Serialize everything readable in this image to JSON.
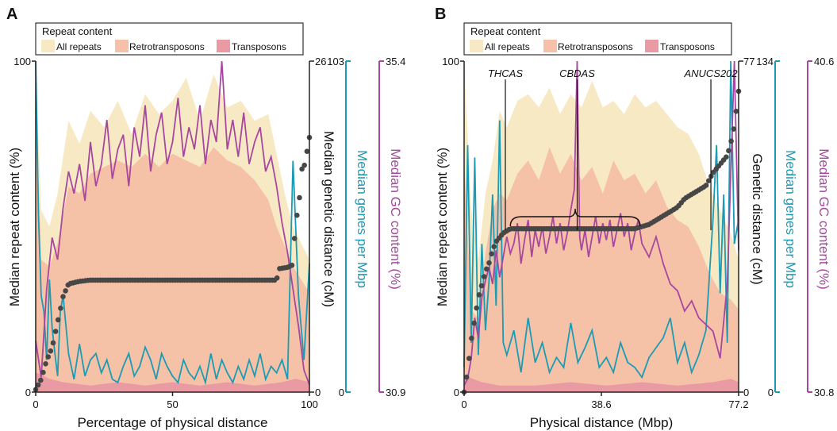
{
  "colors": {
    "all_repeats": "#f7e9c4",
    "retrotransposons": "#f5c2a7",
    "transposons": "#ea9aa2",
    "genetic": "#474747",
    "genes": "#1b9bb4",
    "gc": "#a7479f",
    "axis": "#222222"
  },
  "chart_data": [
    {
      "panel_label": "A",
      "type": "area",
      "legend_title": "Repeat content",
      "legend": [
        "All repeats",
        "Retrotransposons",
        "Transposons"
      ],
      "xlabel": "Percentage of physical distance",
      "xticks": [
        "0",
        "50",
        "100"
      ],
      "xlim": [
        0,
        100
      ],
      "axes": {
        "repeat": {
          "label": "Median repeat content (%)",
          "ticks": [
            "0",
            "100"
          ],
          "range": [
            0,
            100
          ]
        },
        "genetic": {
          "label": "Median genetic distance (cM)",
          "ticks": [
            "0",
            "26"
          ],
          "range": [
            0,
            26
          ]
        },
        "genes": {
          "label": "Median genes per Mbp",
          "ticks": [
            "0",
            "103"
          ],
          "range": [
            0,
            103
          ]
        },
        "gc": {
          "label": "Median GC content (%)",
          "ticks": [
            "30.9",
            "35.4"
          ],
          "range": [
            30.9,
            35.4
          ]
        }
      },
      "series": [
        {
          "name": "All repeats",
          "x": [
            0,
            2,
            5,
            8,
            12,
            16,
            20,
            25,
            30,
            35,
            40,
            45,
            50,
            55,
            60,
            65,
            70,
            75,
            80,
            85,
            88,
            91,
            94,
            97,
            100
          ],
          "values": [
            100,
            55,
            50,
            60,
            82,
            75,
            85,
            80,
            88,
            78,
            90,
            84,
            88,
            95,
            82,
            96,
            86,
            88,
            82,
            84,
            72,
            60,
            50,
            45,
            40
          ]
        },
        {
          "name": "Retrotransposons",
          "x": [
            0,
            2,
            5,
            8,
            12,
            16,
            20,
            25,
            30,
            35,
            40,
            45,
            50,
            55,
            60,
            65,
            70,
            75,
            80,
            85,
            88,
            91,
            94,
            97,
            100
          ],
          "values": [
            90,
            40,
            38,
            45,
            62,
            60,
            66,
            68,
            70,
            68,
            72,
            68,
            72,
            70,
            68,
            74,
            70,
            68,
            64,
            58,
            50,
            44,
            38,
            34,
            30
          ]
        },
        {
          "name": "Transposons",
          "x": [
            0,
            5,
            10,
            20,
            30,
            40,
            50,
            60,
            70,
            80,
            90,
            95,
            100
          ],
          "values": [
            6,
            4,
            3,
            2,
            3,
            2,
            3,
            2,
            3,
            2,
            3,
            4,
            3
          ]
        },
        {
          "name": "Median genetic distance (cM)",
          "x": [
            0,
            2,
            4,
            6,
            8,
            10,
            12,
            14,
            16,
            20,
            30,
            40,
            50,
            60,
            70,
            80,
            88,
            89,
            92,
            94,
            95,
            96,
            97,
            98,
            99,
            100
          ],
          "values": [
            0.2,
            1.0,
            2.5,
            3.5,
            5.5,
            7.5,
            8.5,
            8.6,
            8.7,
            8.8,
            8.8,
            8.8,
            8.8,
            8.8,
            8.8,
            8.8,
            8.8,
            9.7,
            9.8,
            10.0,
            13.8,
            14.0,
            17.5,
            17.6,
            18.8,
            20.0
          ]
        },
        {
          "name": "Median genes per Mbp",
          "x": [
            0,
            1,
            2,
            3,
            4,
            5,
            6,
            7,
            8,
            9,
            10,
            12,
            14,
            16,
            18,
            20,
            22,
            24,
            26,
            28,
            30,
            32,
            34,
            36,
            38,
            40,
            42,
            44,
            46,
            48,
            50,
            52,
            54,
            56,
            58,
            60,
            62,
            64,
            66,
            68,
            70,
            72,
            74,
            76,
            78,
            80,
            82,
            84,
            86,
            88,
            90,
            92,
            94,
            96,
            98,
            100
          ],
          "values": [
            103,
            55,
            30,
            25,
            10,
            35,
            20,
            12,
            5,
            25,
            30,
            12,
            4,
            15,
            5,
            10,
            12,
            6,
            10,
            4,
            3,
            8,
            12,
            5,
            8,
            14,
            10,
            4,
            12,
            8,
            5,
            3,
            10,
            6,
            4,
            8,
            3,
            12,
            4,
            10,
            6,
            3,
            8,
            4,
            10,
            5,
            12,
            4,
            8,
            6,
            10,
            4,
            72,
            30,
            10,
            40
          ]
        },
        {
          "name": "Median GC content (%)",
          "x": [
            0,
            2,
            4,
            6,
            8,
            10,
            12,
            14,
            16,
            18,
            20,
            22,
            24,
            26,
            28,
            30,
            32,
            34,
            36,
            38,
            40,
            42,
            44,
            46,
            48,
            50,
            52,
            54,
            56,
            58,
            60,
            62,
            64,
            66,
            68,
            70,
            72,
            74,
            76,
            78,
            80,
            82,
            84,
            86,
            88,
            90,
            92,
            94,
            96,
            98,
            100
          ],
          "values": [
            31.6,
            31.1,
            32.3,
            33.0,
            32.7,
            33.4,
            33.9,
            33.6,
            34.0,
            33.5,
            34.3,
            33.7,
            34.0,
            34.6,
            33.8,
            34.2,
            34.4,
            33.7,
            34.5,
            34.1,
            34.8,
            33.9,
            34.4,
            34.7,
            34.0,
            34.3,
            34.9,
            34.1,
            34.5,
            34.2,
            34.8,
            34.0,
            34.6,
            34.3,
            35.4,
            34.2,
            34.6,
            34.1,
            34.7,
            34.0,
            34.3,
            34.5,
            33.9,
            34.1,
            33.7,
            33.2,
            32.8,
            32.3,
            31.8,
            31.2,
            31.0
          ]
        }
      ]
    },
    {
      "panel_label": "B",
      "type": "area",
      "legend_title": "Repeat content",
      "legend": [
        "All repeats",
        "Retrotransposons",
        "Transposons"
      ],
      "xlabel": "Physical distance (Mbp)",
      "xticks": [
        "0",
        "38.6",
        "77.2"
      ],
      "xlim": [
        0,
        77.2
      ],
      "axes": {
        "repeat": {
          "label": "Median repeat content (%)",
          "ticks": [
            "0",
            "100"
          ],
          "range": [
            0,
            100
          ]
        },
        "genetic": {
          "label": "Genetic distance (cM)",
          "ticks": [
            "0",
            "77"
          ],
          "range": [
            0,
            77
          ]
        },
        "genes": {
          "label": "Median genes per Mbp",
          "ticks": [
            "0",
            "134"
          ],
          "range": [
            0,
            134
          ]
        },
        "gc": {
          "label": "Median GC content (%)",
          "ticks": [
            "30.8",
            "40.6"
          ],
          "range": [
            30.8,
            40.6
          ]
        }
      },
      "annotations": [
        {
          "label": "THCAS",
          "x": 11.6
        },
        {
          "label": "CBDAS",
          "x": 31.8
        },
        {
          "label": "ANUCS202",
          "x": 69.4
        }
      ],
      "brace": {
        "x0": 13.0,
        "x1": 49.5
      },
      "series": [
        {
          "name": "All repeats",
          "x": [
            0,
            2,
            4,
            6,
            8,
            10,
            12,
            15,
            18,
            21,
            24,
            27,
            30,
            33,
            36,
            39,
            42,
            45,
            48,
            51,
            54,
            57,
            60,
            63,
            66,
            69,
            72,
            75,
            77.2
          ],
          "values": [
            100,
            55,
            40,
            60,
            70,
            85,
            80,
            88,
            90,
            86,
            92,
            84,
            90,
            86,
            94,
            86,
            88,
            84,
            90,
            86,
            88,
            84,
            80,
            78,
            72,
            62,
            55,
            48,
            40
          ]
        },
        {
          "name": "Retrotransposons",
          "x": [
            0,
            2,
            4,
            6,
            8,
            10,
            12,
            15,
            18,
            21,
            24,
            27,
            30,
            33,
            36,
            39,
            42,
            45,
            48,
            51,
            54,
            57,
            60,
            63,
            66,
            69,
            72,
            75,
            77.2
          ],
          "values": [
            70,
            25,
            22,
            42,
            55,
            60,
            58,
            66,
            70,
            64,
            74,
            66,
            72,
            64,
            68,
            60,
            70,
            64,
            66,
            60,
            64,
            56,
            52,
            50,
            44,
            36,
            30,
            28,
            25
          ]
        },
        {
          "name": "Transposons",
          "x": [
            0,
            5,
            10,
            20,
            30,
            40,
            50,
            60,
            70,
            75,
            77.2
          ],
          "values": [
            5,
            3,
            2,
            2,
            3,
            2,
            3,
            2,
            3,
            4,
            3
          ]
        },
        {
          "name": "Genetic distance (cM)",
          "x": [
            0,
            1,
            2,
            3,
            4,
            5,
            6,
            7,
            8,
            9,
            10,
            11,
            12,
            13,
            14,
            20,
            30,
            40,
            48,
            50,
            52,
            54,
            56,
            58,
            60,
            62,
            64,
            66,
            68,
            70,
            71,
            72,
            73,
            74,
            75,
            76,
            77.2
          ],
          "values": [
            0,
            5,
            12,
            17,
            22,
            25,
            28,
            30,
            33,
            35,
            36,
            37,
            37.5,
            38,
            38,
            38,
            38,
            38,
            38,
            38.5,
            39,
            40,
            41,
            42,
            43,
            45,
            46,
            47,
            48,
            51,
            52,
            53,
            54,
            55,
            58,
            62,
            70
          ]
        },
        {
          "name": "Median genes per Mbp",
          "x": [
            0,
            1,
            2,
            3,
            4,
            5,
            6,
            7,
            8,
            9,
            10,
            11,
            12,
            14,
            16,
            18,
            20,
            22,
            24,
            26,
            28,
            30,
            32,
            34,
            36,
            38,
            40,
            42,
            44,
            46,
            48,
            50,
            52,
            54,
            56,
            58,
            60,
            62,
            64,
            66,
            68,
            70,
            71,
            72,
            73,
            74,
            75,
            76,
            77.2
          ],
          "values": [
            10,
            100,
            20,
            95,
            15,
            60,
            25,
            45,
            80,
            35,
            110,
            20,
            15,
            25,
            8,
            30,
            12,
            20,
            8,
            14,
            10,
            28,
            12,
            18,
            25,
            10,
            14,
            8,
            20,
            12,
            10,
            6,
            14,
            18,
            22,
            30,
            12,
            20,
            8,
            15,
            25,
            70,
            100,
            40,
            80,
            20,
            134,
            60,
            70
          ]
        },
        {
          "name": "Median GC content (%)",
          "x": [
            0,
            1,
            2,
            3,
            4,
            5,
            6,
            7,
            8,
            9,
            10,
            11,
            12,
            13,
            14,
            15,
            16,
            17,
            18,
            19,
            20,
            21,
            22,
            23,
            24,
            25,
            26,
            27,
            28,
            29,
            30,
            31,
            31.8,
            32.5,
            33,
            34,
            35,
            36,
            37,
            38,
            39,
            40,
            41,
            42,
            43,
            44,
            45,
            46,
            47,
            48,
            49,
            50,
            52,
            54,
            56,
            58,
            60,
            62,
            64,
            66,
            68,
            70,
            72,
            74,
            76,
            77.2
          ],
          "values": [
            31.0,
            31.2,
            31.8,
            33.0,
            32.4,
            33.6,
            34.1,
            34.5,
            34.0,
            35.0,
            34.2,
            34.8,
            35.4,
            34.9,
            35.2,
            35.8,
            34.6,
            35.3,
            35.9,
            34.8,
            35.6,
            35.1,
            35.7,
            34.9,
            35.4,
            36.0,
            35.2,
            35.8,
            35.0,
            35.5,
            36.2,
            36.8,
            40.6,
            35.4,
            35.0,
            35.6,
            34.8,
            35.4,
            36.0,
            35.2,
            35.8,
            35.3,
            35.9,
            35.1,
            35.6,
            36.1,
            35.4,
            35.8,
            35.0,
            35.5,
            35.9,
            35.2,
            34.8,
            35.4,
            34.6,
            34.0,
            33.8,
            33.2,
            33.5,
            33.0,
            32.8,
            32.6,
            31.8,
            34.0,
            40.6,
            35.0
          ]
        }
      ]
    }
  ]
}
